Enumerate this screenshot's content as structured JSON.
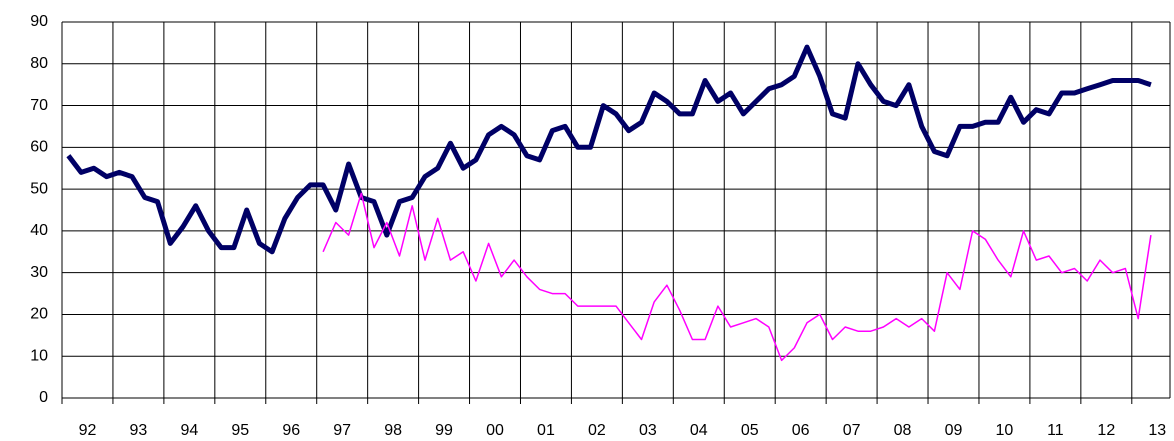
{
  "chart_data": {
    "type": "line",
    "x": [
      1992.125,
      1992.375,
      1992.625,
      1992.875,
      1993.125,
      1993.375,
      1993.625,
      1993.875,
      1994.125,
      1994.375,
      1994.625,
      1994.875,
      1995.125,
      1995.375,
      1995.625,
      1995.875,
      1996.125,
      1996.375,
      1996.625,
      1996.875,
      1997.125,
      1997.375,
      1997.625,
      1997.875,
      1998.125,
      1998.375,
      1998.625,
      1998.875,
      1999.125,
      1999.375,
      1999.625,
      1999.875,
      2000.125,
      2000.375,
      2000.625,
      2000.875,
      2001.125,
      2001.375,
      2001.625,
      2001.875,
      2002.125,
      2002.375,
      2002.625,
      2002.875,
      2003.125,
      2003.375,
      2003.625,
      2003.875,
      2004.125,
      2004.375,
      2004.625,
      2004.875,
      2005.125,
      2005.375,
      2005.625,
      2005.875,
      2006.125,
      2006.375,
      2006.625,
      2006.875,
      2007.125,
      2007.375,
      2007.625,
      2007.875,
      2008.125,
      2008.375,
      2008.625,
      2008.875,
      2009.125,
      2009.375,
      2009.625,
      2009.875,
      2010.125,
      2010.375,
      2010.625,
      2010.875,
      2011.125,
      2011.375,
      2011.625,
      2011.875,
      2012.125,
      2012.375,
      2012.625,
      2012.875,
      2013.125,
      2013.375
    ],
    "series": [
      {
        "color": "#000066",
        "values": [
          58,
          54,
          55,
          53,
          54,
          53,
          48,
          47,
          37,
          41,
          46,
          40,
          36,
          36,
          45,
          37,
          35,
          43,
          48,
          51,
          51,
          45,
          56,
          48,
          47,
          39,
          47,
          48,
          53,
          55,
          61,
          55,
          57,
          63,
          65,
          63,
          58,
          57,
          64,
          65,
          60,
          60,
          70,
          68,
          64,
          66,
          73,
          71,
          68,
          68,
          76,
          71,
          73,
          68,
          71,
          74,
          75,
          77,
          84,
          77,
          68,
          67,
          80,
          75,
          71,
          70,
          75,
          65,
          59,
          58,
          65,
          65,
          66,
          66,
          72,
          66,
          69,
          68,
          73,
          73,
          74,
          75,
          76,
          76,
          76,
          75
        ]
      },
      {
        "color": "#ff00ff",
        "values": [
          null,
          null,
          null,
          null,
          null,
          null,
          null,
          null,
          null,
          null,
          null,
          null,
          null,
          null,
          null,
          null,
          null,
          null,
          null,
          null,
          35,
          42,
          39,
          49,
          36,
          42,
          34,
          46,
          33,
          43,
          33,
          35,
          28,
          37,
          29,
          33,
          29,
          26,
          25,
          25,
          22,
          22,
          22,
          22,
          18,
          14,
          23,
          27,
          21,
          14,
          14,
          22,
          17,
          18,
          19,
          17,
          9,
          12,
          18,
          20,
          14,
          17,
          16,
          16,
          17,
          19,
          17,
          19,
          16,
          30,
          26,
          40,
          38,
          33,
          29,
          40,
          33,
          34,
          30,
          31,
          28,
          33,
          30,
          31,
          19,
          39
        ]
      }
    ],
    "xlim": [
      1992,
      2013.75
    ],
    "xticks": [
      {
        "value": 1992.5,
        "label": "92"
      },
      {
        "value": 1993.5,
        "label": "93"
      },
      {
        "value": 1994.5,
        "label": "94"
      },
      {
        "value": 1995.5,
        "label": "95"
      },
      {
        "value": 1996.5,
        "label": "96"
      },
      {
        "value": 1997.5,
        "label": "97"
      },
      {
        "value": 1998.5,
        "label": "98"
      },
      {
        "value": 1999.5,
        "label": "99"
      },
      {
        "value": 2000.5,
        "label": "00"
      },
      {
        "value": 2001.5,
        "label": "01"
      },
      {
        "value": 2002.5,
        "label": "02"
      },
      {
        "value": 2003.5,
        "label": "03"
      },
      {
        "value": 2004.5,
        "label": "04"
      },
      {
        "value": 2005.5,
        "label": "05"
      },
      {
        "value": 2006.5,
        "label": "06"
      },
      {
        "value": 2007.5,
        "label": "07"
      },
      {
        "value": 2008.5,
        "label": "08"
      },
      {
        "value": 2009.5,
        "label": "09"
      },
      {
        "value": 2010.5,
        "label": "10"
      },
      {
        "value": 2011.5,
        "label": "11"
      },
      {
        "value": 2012.5,
        "label": "12"
      },
      {
        "value": 2013.5,
        "label": "13"
      }
    ],
    "ylim": [
      0,
      90
    ],
    "yticks": [
      0,
      10,
      20,
      30,
      40,
      50,
      60,
      70,
      80,
      90
    ],
    "grid": true
  }
}
